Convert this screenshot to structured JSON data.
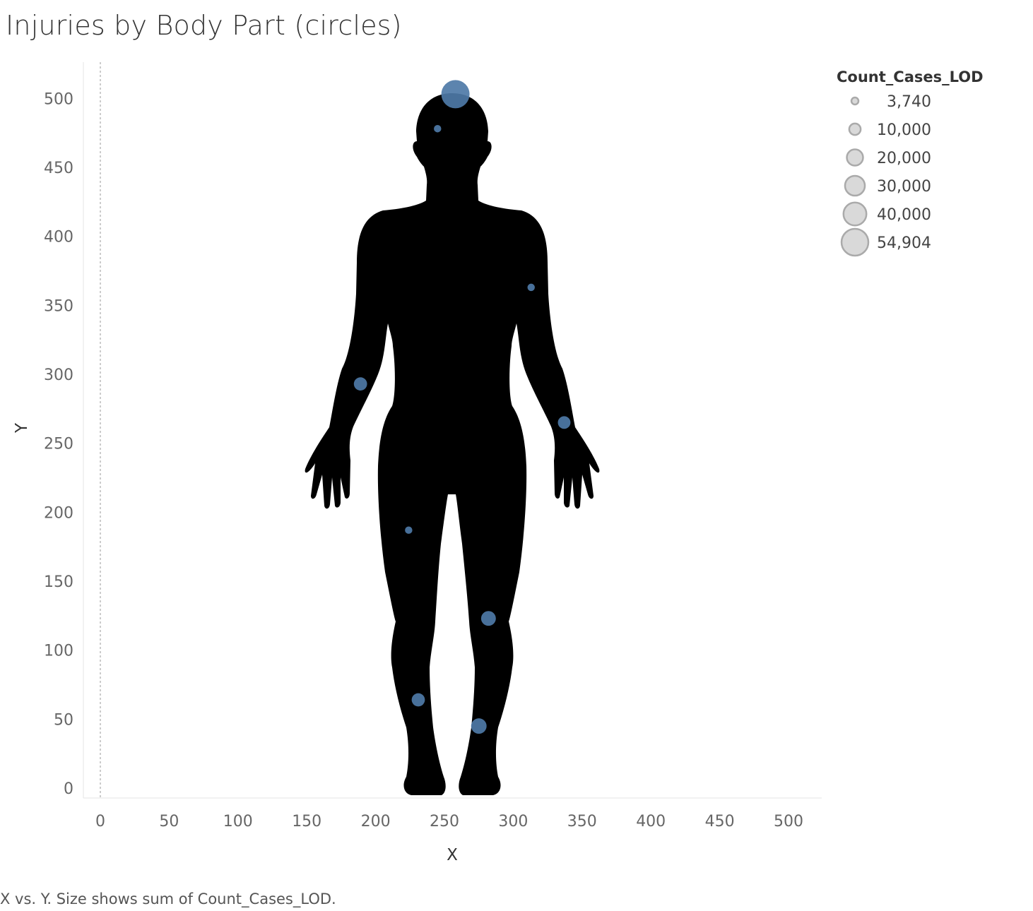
{
  "chart_data": {
    "type": "scatter",
    "title": "Injuries by Body Part (circles)",
    "xlabel": "X",
    "ylabel": "Y",
    "xlim": [
      -12,
      522
    ],
    "ylim": [
      -8,
      527
    ],
    "x_ticks": [
      "0",
      "50",
      "100",
      "150",
      "200",
      "250",
      "300",
      "350",
      "400",
      "450",
      "500"
    ],
    "y_ticks": [
      "0",
      "50",
      "100",
      "150",
      "200",
      "250",
      "300",
      "350",
      "400",
      "450",
      "500"
    ],
    "grid": false,
    "color": "#4e79a7",
    "size_field": "Count_Cases_LOD",
    "background_image": "human-body-silhouette",
    "points": [
      {
        "x": 258,
        "y": 503,
        "value": 54904
      },
      {
        "x": 245,
        "y": 478,
        "value": 3740
      },
      {
        "x": 313,
        "y": 363,
        "value": 3740
      },
      {
        "x": 189,
        "y": 293,
        "value": 12000
      },
      {
        "x": 337,
        "y": 265,
        "value": 11000
      },
      {
        "x": 224,
        "y": 187,
        "value": 3740
      },
      {
        "x": 282,
        "y": 123,
        "value": 15000
      },
      {
        "x": 231,
        "y": 64,
        "value": 12000
      },
      {
        "x": 275,
        "y": 45,
        "value": 16500
      }
    ],
    "legend": {
      "title": "Count_Cases_LOD",
      "placement": "top-right",
      "items": [
        {
          "label": "3,740",
          "value": 3740
        },
        {
          "label": "10,000",
          "value": 10000
        },
        {
          "label": "20,000",
          "value": 20000
        },
        {
          "label": "30,000",
          "value": 30000
        },
        {
          "label": "40,000",
          "value": 40000
        },
        {
          "label": "54,904",
          "value": 54904
        }
      ]
    },
    "caption": "X vs. Y.  Size shows sum of Count_Cases_LOD."
  }
}
